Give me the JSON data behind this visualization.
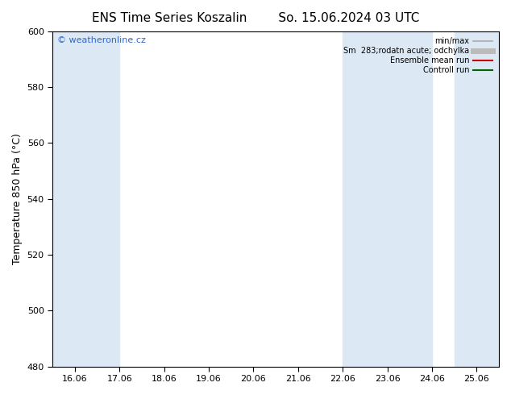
{
  "title_left": "ENS Time Series Koszalin",
  "title_right": "So. 15.06.2024 03 UTC",
  "ylabel": "Temperature 850 hPa (°C)",
  "ylim": [
    480,
    600
  ],
  "yticks": [
    480,
    500,
    520,
    540,
    560,
    580,
    600
  ],
  "xlim": [
    -0.5,
    9.5
  ],
  "xtick_labels": [
    "16.06",
    "17.06",
    "18.06",
    "19.06",
    "20.06",
    "21.06",
    "22.06",
    "23.06",
    "24.06",
    "25.06"
  ],
  "xtick_positions": [
    0,
    1,
    2,
    3,
    4,
    5,
    6,
    7,
    8,
    9
  ],
  "bg_color": "#ffffff",
  "plot_bg_color": "#ffffff",
  "shaded_bands": [
    {
      "xmin": -0.5,
      "xmax": 0.0,
      "color": "#dce9f5"
    },
    {
      "xmin": 0.0,
      "xmax": 1.0,
      "color": "#dce9f5"
    },
    {
      "xmin": 6.0,
      "xmax": 7.0,
      "color": "#dce9f5"
    },
    {
      "xmin": 7.0,
      "xmax": 8.0,
      "color": "#dce9f5"
    },
    {
      "xmin": 8.5,
      "xmax": 9.5,
      "color": "#dce9f5"
    }
  ],
  "legend_entries": [
    {
      "label": "min/max",
      "color": "#aaaaaa",
      "lw": 1.2,
      "ls": "-"
    },
    {
      "label": "Sm  283;rodatn acute; odchylka",
      "color": "#bbbbbb",
      "lw": 5,
      "ls": "-"
    },
    {
      "label": "Ensemble mean run",
      "color": "#cc0000",
      "lw": 1.5,
      "ls": "-"
    },
    {
      "label": "Controll run",
      "color": "#006600",
      "lw": 1.5,
      "ls": "-"
    }
  ],
  "watermark": "© weatheronline.cz",
  "watermark_color": "#3366cc",
  "title_fontsize": 11,
  "tick_fontsize": 8,
  "ylabel_fontsize": 9
}
